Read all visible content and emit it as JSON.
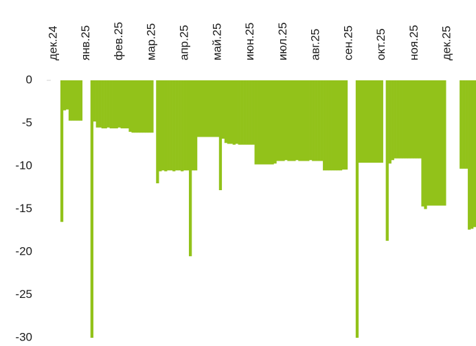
{
  "chart_data": {
    "type": "area",
    "color": "#92c21a",
    "categories": [
      null,
      null,
      "дек.24",
      null,
      null,
      null,
      null,
      null,
      null,
      null,
      null,
      null,
      null,
      null,
      "янв.25",
      null,
      null,
      null,
      null,
      null,
      null,
      null,
      null,
      null,
      null,
      null,
      "фев.25",
      null,
      null,
      null,
      null,
      null,
      null,
      null,
      null,
      null,
      null,
      null,
      "мар.25",
      null,
      null,
      null,
      null,
      null,
      null,
      null,
      null,
      null,
      null,
      null,
      "апр.25",
      null,
      null,
      null,
      null,
      null,
      null,
      null,
      null,
      null,
      null,
      null,
      "май.25",
      null,
      null,
      null,
      null,
      null,
      null,
      null,
      null,
      null,
      null,
      null,
      "июн.25",
      null,
      null,
      null,
      null,
      null,
      null,
      null,
      null,
      null,
      null,
      null,
      "июл.25",
      null,
      null,
      null,
      null,
      null,
      null,
      null,
      null,
      null,
      null,
      null,
      "авг.25",
      null,
      null,
      null,
      null,
      null,
      null,
      null,
      null,
      null,
      null,
      null,
      "сен.25",
      null,
      null,
      null,
      null,
      null,
      null,
      null,
      null,
      null,
      null,
      null,
      "окт.25",
      null,
      null,
      null,
      null,
      null,
      null,
      null,
      null,
      null,
      null,
      null,
      "ноя.25",
      null,
      null,
      null,
      null,
      null,
      null,
      null,
      null,
      null,
      null,
      null,
      "дек.25",
      null,
      null,
      null,
      null,
      null,
      null,
      null,
      null,
      null,
      null
    ],
    "values": [
      0,
      0,
      0,
      0,
      0,
      -16.5,
      -3.5,
      -3.4,
      -4.7,
      -4.7,
      -4.7,
      -4.7,
      -4.7,
      0,
      0,
      0,
      -30,
      -4.8,
      -5.5,
      -5.5,
      -5.6,
      -5.6,
      -5.5,
      -5.6,
      -5.6,
      -5.6,
      -5.5,
      -5.6,
      -5.6,
      -5.6,
      -6.0,
      -6.1,
      -6.1,
      -6.1,
      -6.1,
      -6.1,
      -6.1,
      -6.1,
      -6.1,
      0,
      -12,
      -10.6,
      -10.5,
      -10.6,
      -10.5,
      -10.5,
      -10.6,
      -10.5,
      -10.5,
      -10.6,
      -10.5,
      -10.5,
      -20.5,
      -10.5,
      -10.5,
      -6.6,
      -6.6,
      -6.6,
      -6.6,
      -6.6,
      -6.6,
      -6.6,
      -6.6,
      -12.8,
      -6.8,
      -7.3,
      -7.4,
      -7.4,
      -7.5,
      -7.4,
      -7.5,
      -7.5,
      -7.5,
      -7.5,
      -7.5,
      -7.5,
      -9.8,
      -9.8,
      -9.8,
      -9.8,
      -9.8,
      -9.8,
      -9.8,
      -9.7,
      -9.4,
      -9.4,
      -9.4,
      -9.3,
      -9.4,
      -9.4,
      -9.4,
      -9.3,
      -9.4,
      -9.4,
      -9.4,
      -9.4,
      -9.3,
      -9.4,
      -9.4,
      -9.4,
      -9.4,
      -10.5,
      -10.5,
      -10.5,
      -10.5,
      -10.5,
      -10.5,
      -10.5,
      -10.4,
      -10.4,
      0,
      0,
      0,
      -30,
      -9.6,
      -9.6,
      -9.6,
      -9.6,
      -9.6,
      -9.6,
      -9.6,
      -9.6,
      -9.6,
      0,
      -18.7,
      -9.7,
      -9.3,
      -9.1,
      -9.1,
      -9.1,
      -9.1,
      -9.1,
      -9.1,
      -9.1,
      -9.1,
      -9.1,
      -9.1,
      -14.7,
      -15,
      -14.6,
      -14.6,
      -14.6,
      -14.6,
      -14.6,
      -14.6,
      -14.6,
      0,
      0,
      0,
      0,
      0,
      -10.3,
      -10.3,
      -10.3,
      -17.4,
      -17.3,
      -17.1
    ],
    "ylim": [
      -30,
      0
    ],
    "yticks": [
      0,
      -5,
      -10,
      -15,
      -20,
      -25,
      -30
    ]
  }
}
